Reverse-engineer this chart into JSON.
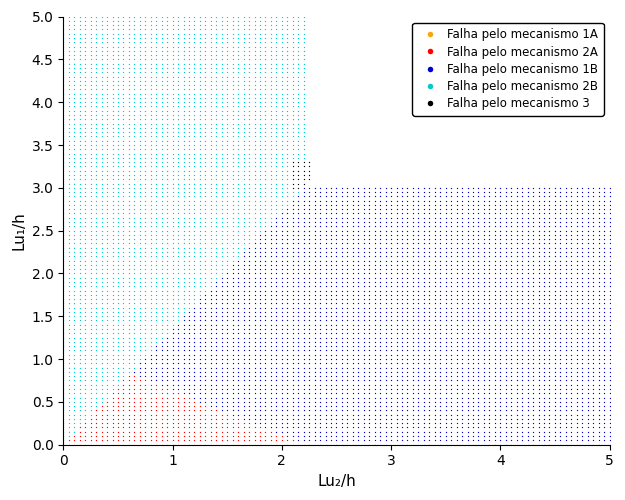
{
  "xlabel": "Lu₂/h",
  "ylabel": "Lu₁/h",
  "xlim": [
    0,
    5
  ],
  "ylim": [
    0,
    5
  ],
  "xticks": [
    0,
    1,
    2,
    3,
    4,
    5
  ],
  "yticks": [
    0,
    0.5,
    1.0,
    1.5,
    2.0,
    2.5,
    3.0,
    3.5,
    4.0,
    4.5,
    5.0
  ],
  "color_1A": "#FFA500",
  "color_2A": "#FF0000",
  "color_1B": "#0000CC",
  "color_2B": "#00CCCC",
  "color_3": "#000000",
  "legend_labels": [
    "Falha pelo mecanismo 1A",
    "Falha pelo mecanismo 2A",
    "Falha pelo mecanismo 1B",
    "Falha pelo mecanismo 2B",
    "Falha pelo mecanismo 3"
  ],
  "n_points": 101,
  "dot_size": 3.5,
  "x_cut": 2.22,
  "diag_slope": 1.364,
  "y_cap_blue": 3.0,
  "orange_x_max": 0.57,
  "orange_lower_slope": 4.5,
  "orange_lower_intercept": 0.68,
  "red_upper_a": 1.15,
  "red_upper_b": 0.52,
  "black_x_min": 2.08,
  "black_x_max": 2.28,
  "black_y_min": 2.95,
  "black_y_max": 3.32
}
